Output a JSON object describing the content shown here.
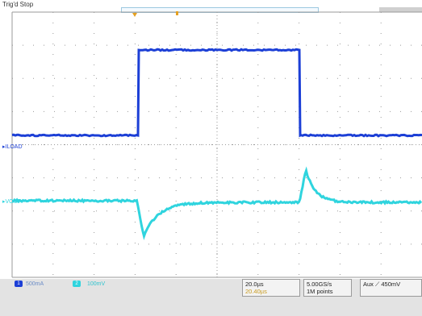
{
  "status": "Trig'd Stop",
  "channels": {
    "ch1": {
      "label": "ILOAD",
      "scale": "500mA",
      "color": "#1c3fd6"
    },
    "ch2": {
      "label": "VOUT",
      "scale": "100mV",
      "color": "#2fd4de"
    }
  },
  "timebase": {
    "scale": "20.0µs",
    "position": "20.40µs"
  },
  "acquisition": {
    "rate": "5.00GS/s",
    "length": "1M points"
  },
  "trigger": {
    "source": "Aux",
    "level": "450mV"
  },
  "colors": {
    "grid": "#9a9a9a",
    "trigger_marker": "#e5a021"
  }
}
